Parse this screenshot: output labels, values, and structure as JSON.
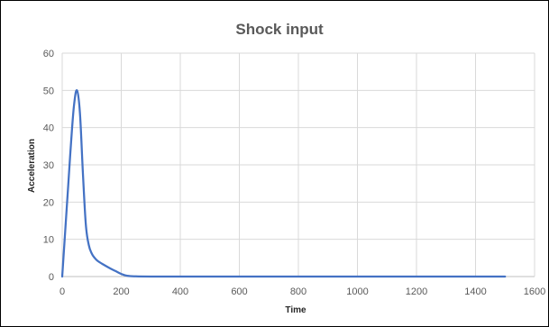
{
  "chart_data": {
    "type": "line",
    "title": "Shock input",
    "xlabel": "Time",
    "ylabel": "Acceleration",
    "xlim": [
      0,
      1600
    ],
    "ylim": [
      0,
      60
    ],
    "x_ticks": [
      "0",
      "200",
      "400",
      "600",
      "800",
      "1000",
      "1200",
      "1400",
      "1600"
    ],
    "y_ticks": [
      "0",
      "10",
      "20",
      "30",
      "40",
      "50",
      "60"
    ],
    "grid": true,
    "legend": "none",
    "line_color": "#4472C4",
    "series": [
      {
        "x": [
          0,
          10,
          20,
          30,
          40,
          50,
          60,
          70,
          80,
          90,
          100,
          110,
          120,
          140,
          160,
          180,
          200,
          220,
          250,
          300,
          400,
          600,
          800,
          1000,
          1200,
          1400,
          1500
        ],
        "values": [
          0,
          12,
          24,
          36,
          46,
          50,
          44,
          28,
          14,
          8.5,
          6.2,
          5.0,
          4.2,
          3.2,
          2.3,
          1.5,
          0.7,
          0.2,
          0.05,
          0,
          0,
          0,
          0,
          0,
          0,
          0,
          0
        ]
      }
    ]
  }
}
